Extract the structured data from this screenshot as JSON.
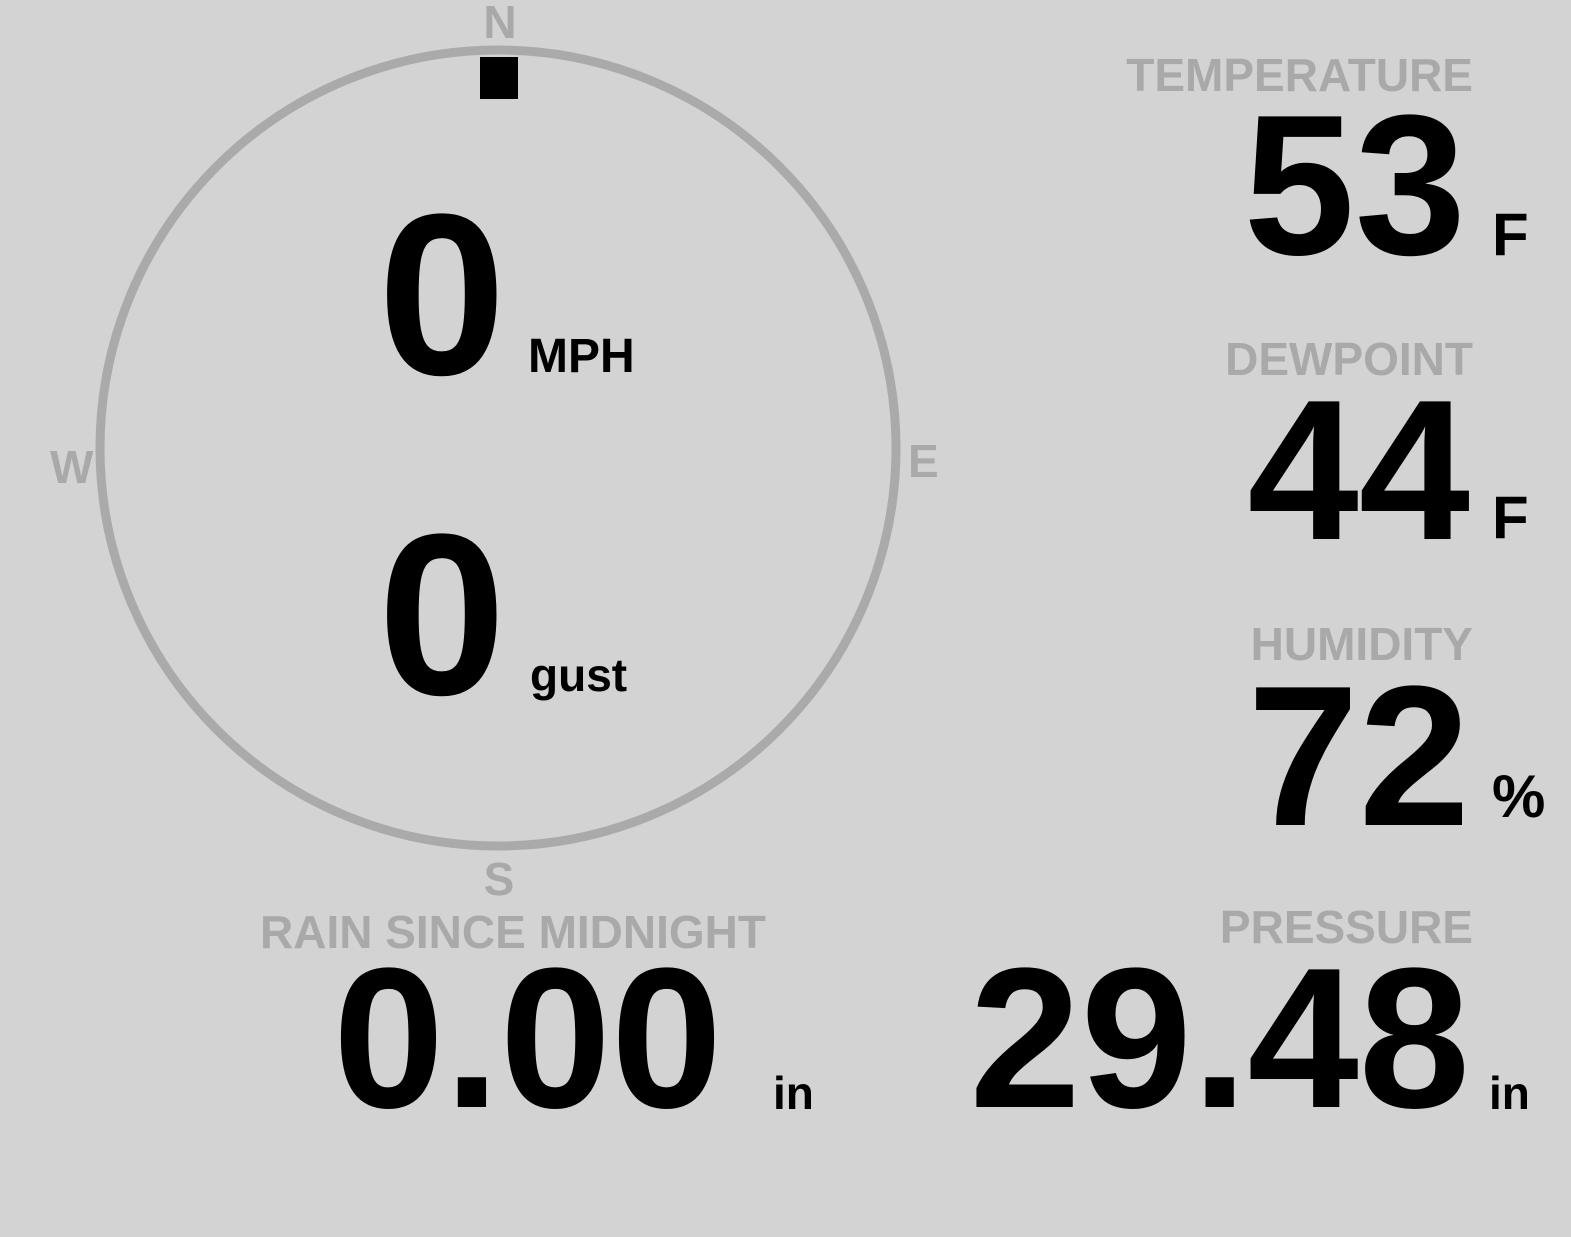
{
  "wind": {
    "compass": {
      "n": "N",
      "e": "E",
      "s": "S",
      "w": "W"
    },
    "direction_deg": 0,
    "speed": "0",
    "speed_unit": "MPH",
    "gust": "0",
    "gust_unit": "gust"
  },
  "temperature": {
    "label": "TEMPERATURE",
    "value": "53",
    "unit": "F"
  },
  "dewpoint": {
    "label": "DEWPOINT",
    "value": "44",
    "unit": "F"
  },
  "humidity": {
    "label": "HUMIDITY",
    "value": "72",
    "unit": "%"
  },
  "rain": {
    "label": "RAIN SINCE MIDNIGHT",
    "value": "0.00",
    "unit": "in"
  },
  "pressure": {
    "label": "PRESSURE",
    "value": "29.48",
    "unit": "in"
  },
  "colors": {
    "background": "#d3d3d3",
    "label": "#a9a9a9",
    "value": "#000000",
    "ring": "#aaaaaa"
  }
}
